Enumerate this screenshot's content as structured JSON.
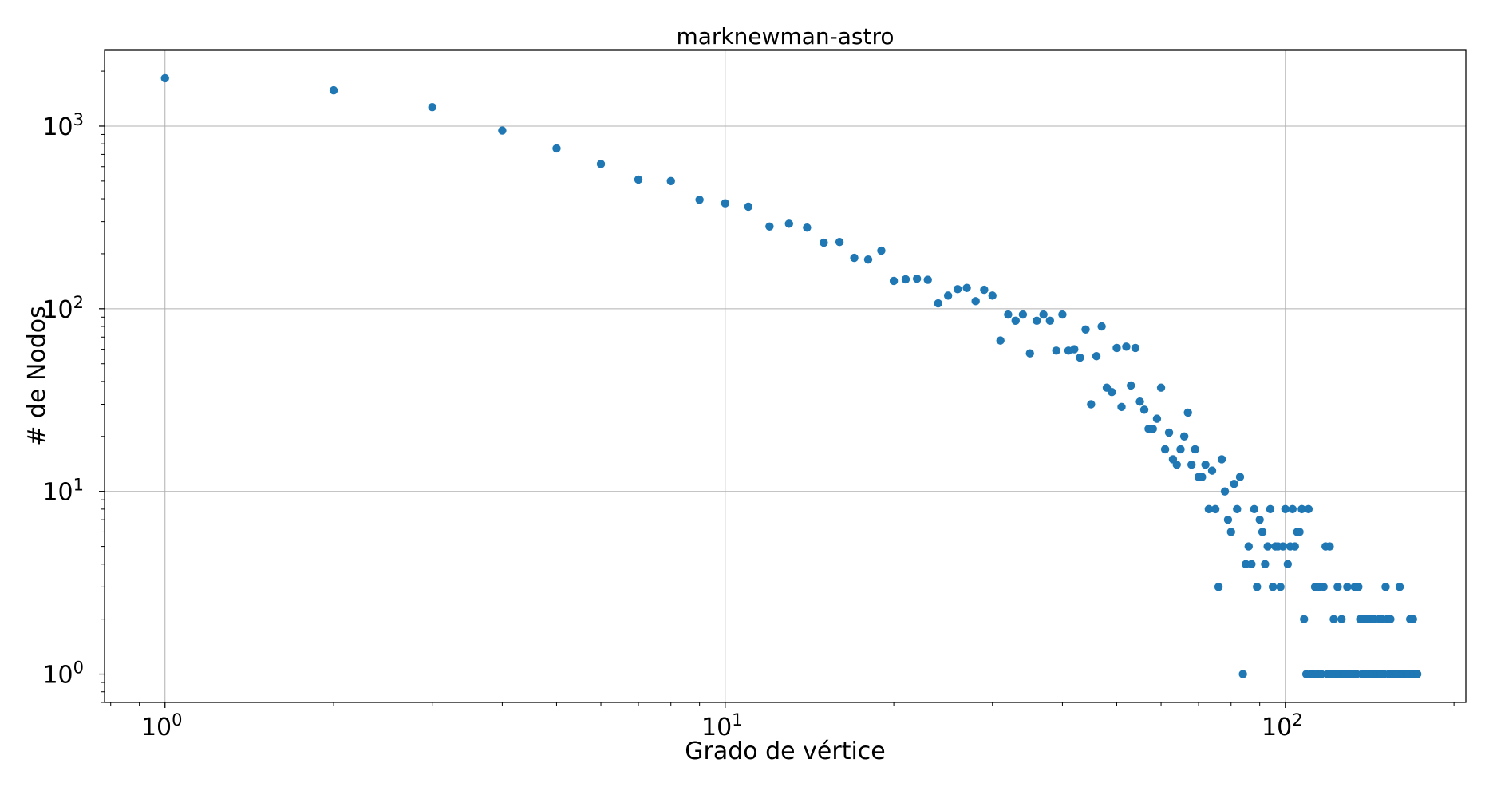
{
  "chart_data": {
    "type": "scatter",
    "title": "marknewman-astro",
    "xlabel": "Grado de vértice",
    "ylabel": "# de Nodos",
    "x_scale": "log",
    "y_scale": "log",
    "xlim": [
      0.78,
      210
    ],
    "ylim": [
      0.7,
      2600
    ],
    "grid": true,
    "x_ticks": [
      {
        "value": 1,
        "base": "10",
        "exp": "0"
      },
      {
        "value": 10,
        "base": "10",
        "exp": "1"
      },
      {
        "value": 100,
        "base": "10",
        "exp": "2"
      }
    ],
    "y_ticks": [
      {
        "value": 1,
        "base": "10",
        "exp": "0"
      },
      {
        "value": 10,
        "base": "10",
        "exp": "1"
      },
      {
        "value": 100,
        "base": "10",
        "exp": "2"
      },
      {
        "value": 1000,
        "base": "10",
        "exp": "3"
      }
    ],
    "marker_color": "#1f77b4",
    "series": [
      {
        "points": [
          [
            1,
            1830
          ],
          [
            2,
            1570
          ],
          [
            3,
            1270
          ],
          [
            4,
            945
          ],
          [
            5,
            755
          ],
          [
            6,
            620
          ],
          [
            7,
            510
          ],
          [
            8,
            500
          ],
          [
            9,
            395
          ],
          [
            10,
            378
          ],
          [
            11,
            362
          ],
          [
            12,
            282
          ],
          [
            13,
            292
          ],
          [
            14,
            278
          ],
          [
            15,
            230
          ],
          [
            16,
            232
          ],
          [
            17,
            190
          ],
          [
            18,
            186
          ],
          [
            19,
            208
          ],
          [
            20,
            142
          ],
          [
            21,
            145
          ],
          [
            22,
            146
          ],
          [
            23,
            144
          ],
          [
            24,
            107
          ],
          [
            25,
            118
          ],
          [
            26,
            128
          ],
          [
            27,
            130
          ],
          [
            28,
            110
          ],
          [
            29,
            127
          ],
          [
            30,
            118
          ],
          [
            31,
            67
          ],
          [
            32,
            93
          ],
          [
            33,
            86
          ],
          [
            34,
            93
          ],
          [
            35,
            57
          ],
          [
            36,
            86
          ],
          [
            37,
            93
          ],
          [
            38,
            86
          ],
          [
            39,
            59
          ],
          [
            40,
            93
          ],
          [
            41,
            59
          ],
          [
            42,
            60
          ],
          [
            43,
            54
          ],
          [
            44,
            77
          ],
          [
            45,
            30
          ],
          [
            46,
            55
          ],
          [
            47,
            80
          ],
          [
            48,
            37
          ],
          [
            49,
            35
          ],
          [
            50,
            61
          ],
          [
            51,
            29
          ],
          [
            52,
            62
          ],
          [
            53,
            38
          ],
          [
            54,
            61
          ],
          [
            55,
            31
          ],
          [
            56,
            28
          ],
          [
            57,
            22
          ],
          [
            58,
            22
          ],
          [
            59,
            25
          ],
          [
            60,
            37
          ],
          [
            61,
            17
          ],
          [
            62,
            21
          ],
          [
            63,
            15
          ],
          [
            64,
            14
          ],
          [
            65,
            17
          ],
          [
            66,
            20
          ],
          [
            67,
            27
          ],
          [
            68,
            14
          ],
          [
            69,
            17
          ],
          [
            70,
            12
          ],
          [
            71,
            12
          ],
          [
            72,
            14
          ],
          [
            73,
            8
          ],
          [
            74,
            13
          ],
          [
            75,
            8
          ],
          [
            76,
            3
          ],
          [
            77,
            15
          ],
          [
            78,
            10
          ],
          [
            79,
            7
          ],
          [
            80,
            6
          ],
          [
            81,
            11
          ],
          [
            82,
            8
          ],
          [
            83,
            12
          ],
          [
            84,
            1
          ],
          [
            85,
            4
          ],
          [
            86,
            5
          ],
          [
            87,
            4
          ],
          [
            88,
            8
          ],
          [
            89,
            3
          ],
          [
            90,
            7
          ],
          [
            91,
            6
          ],
          [
            92,
            4
          ],
          [
            93,
            5
          ],
          [
            94,
            8
          ],
          [
            95,
            3
          ],
          [
            96,
            5
          ],
          [
            97,
            5
          ],
          [
            98,
            3
          ],
          [
            99,
            5
          ],
          [
            100,
            8
          ],
          [
            101,
            4
          ],
          [
            102,
            5
          ],
          [
            103,
            8
          ],
          [
            104,
            5
          ],
          [
            105,
            6
          ],
          [
            106,
            6
          ],
          [
            107,
            8
          ],
          [
            108,
            2
          ],
          [
            109,
            1
          ],
          [
            110,
            8
          ],
          [
            111,
            1
          ],
          [
            112,
            1
          ],
          [
            113,
            3
          ],
          [
            114,
            1
          ],
          [
            115,
            3
          ],
          [
            116,
            1
          ],
          [
            117,
            3
          ],
          [
            118,
            5
          ],
          [
            119,
            1
          ],
          [
            120,
            5
          ],
          [
            121,
            1
          ],
          [
            122,
            2
          ],
          [
            123,
            1
          ],
          [
            124,
            3
          ],
          [
            125,
            1
          ],
          [
            126,
            2
          ],
          [
            127,
            1
          ],
          [
            128,
            1
          ],
          [
            129,
            3
          ],
          [
            130,
            1
          ],
          [
            131,
            1
          ],
          [
            132,
            1
          ],
          [
            133,
            3
          ],
          [
            134,
            1
          ],
          [
            135,
            3
          ],
          [
            136,
            2
          ],
          [
            137,
            1
          ],
          [
            138,
            2
          ],
          [
            139,
            1
          ],
          [
            140,
            2
          ],
          [
            141,
            1
          ],
          [
            142,
            2
          ],
          [
            143,
            1
          ],
          [
            144,
            2
          ],
          [
            145,
            1
          ],
          [
            146,
            1
          ],
          [
            147,
            2
          ],
          [
            148,
            1
          ],
          [
            149,
            2
          ],
          [
            150,
            1
          ],
          [
            151,
            3
          ],
          [
            152,
            2
          ],
          [
            153,
            1
          ],
          [
            154,
            2
          ],
          [
            155,
            1
          ],
          [
            156,
            1
          ],
          [
            157,
            1
          ],
          [
            158,
            1
          ],
          [
            159,
            1
          ],
          [
            160,
            3
          ],
          [
            161,
            1
          ],
          [
            162,
            1
          ],
          [
            163,
            1
          ],
          [
            164,
            1
          ],
          [
            165,
            1
          ],
          [
            166,
            1
          ],
          [
            167,
            2
          ],
          [
            168,
            1
          ],
          [
            169,
            2
          ],
          [
            170,
            1
          ],
          [
            171,
            1
          ],
          [
            172,
            1
          ]
        ]
      }
    ]
  }
}
